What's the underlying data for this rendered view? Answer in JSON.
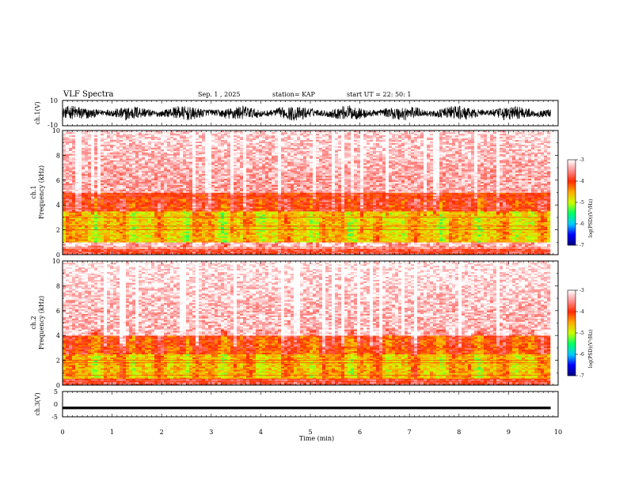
{
  "header": {
    "title": "VLF Spectra",
    "date": "Sep. 1 , 2025",
    "station": "station= KAP",
    "start": "start  UT =  22: 50: 1"
  },
  "colors": {
    "axis": "#000000",
    "background": "#ffffff",
    "colormap": [
      "#00007f",
      "#0000ff",
      "#00ccff",
      "#00ff66",
      "#ccff00",
      "#ffaa00",
      "#ff2a00",
      "#ff9090",
      "#ffffff"
    ]
  },
  "chart_data": [
    {
      "type": "line",
      "name": "ch1-waveform",
      "ylabel": "ch.1(V)",
      "ylim": [
        -10,
        10
      ],
      "yticks": [
        "10",
        "-10"
      ],
      "xlim": [
        0,
        10
      ],
      "description_series": "noise envelope ~ +-5 V with slow oscillation"
    },
    {
      "type": "heatmap",
      "name": "ch1-spectrogram",
      "ylabel_line1": "ch.1",
      "ylabel_line2": "Frequency (kHz)",
      "ylim": [
        0,
        10
      ],
      "yticks": [
        "0",
        "2",
        "4",
        "6",
        "8",
        "10"
      ],
      "xlim": [
        0,
        9.8
      ],
      "colorbar": {
        "label": "log(PSD)(V²/Hz)",
        "range": [
          -7,
          -3
        ],
        "ticks": [
          "-3",
          "-4",
          "-5",
          "-6",
          "-7"
        ]
      },
      "bands": [
        {
          "fmin": 0,
          "fmax": 0.5,
          "level": -3.8
        },
        {
          "fmin": 1,
          "fmax": 3.5,
          "level": -4.7
        },
        {
          "fmin": 3.5,
          "fmax": 5,
          "level": -4.0
        },
        {
          "fmin": 5,
          "fmax": 10,
          "level": -3.4
        }
      ],
      "lines_khz": [
        0.25,
        0.45,
        0.6,
        2.0,
        2.3,
        3.0,
        3.7,
        4.7
      ]
    },
    {
      "type": "heatmap",
      "name": "ch2-spectrogram",
      "ylabel_line1": "ch.2",
      "ylabel_line2": "Frequency (kHz)",
      "ylim": [
        0,
        10
      ],
      "yticks": [
        "0",
        "2",
        "4",
        "6",
        "8",
        "10"
      ],
      "xlim": [
        0,
        9.8
      ],
      "colorbar": {
        "label": "log(PSD)(V²/Hz)",
        "range": [
          -7,
          -3
        ],
        "ticks": [
          "-3",
          "-4",
          "-5",
          "-6",
          "-7"
        ]
      },
      "bands": [
        {
          "fmin": 0,
          "fmax": 0.5,
          "level": -3.8
        },
        {
          "fmin": 0.5,
          "fmax": 2.5,
          "level": -4.6
        },
        {
          "fmin": 2.5,
          "fmax": 4,
          "level": -4.1
        },
        {
          "fmin": 4,
          "fmax": 10,
          "level": -3.3
        }
      ],
      "lines_khz": [
        0.3,
        0.5,
        0.8,
        1.8,
        2.0
      ]
    },
    {
      "type": "line",
      "name": "ch3-waveform",
      "ylabel": "ch.3(V)",
      "ylim": [
        -5,
        5
      ],
      "yticks": [
        "5",
        "0",
        "-5"
      ],
      "xlim": [
        0,
        10
      ],
      "level": -1.5,
      "amplitude": 0.5
    }
  ],
  "x_axis": {
    "label": "Time (min)",
    "ticks": [
      "0",
      "1",
      "2",
      "3",
      "4",
      "5",
      "6",
      "7",
      "8",
      "9",
      "10"
    ],
    "range": [
      0,
      10
    ]
  }
}
